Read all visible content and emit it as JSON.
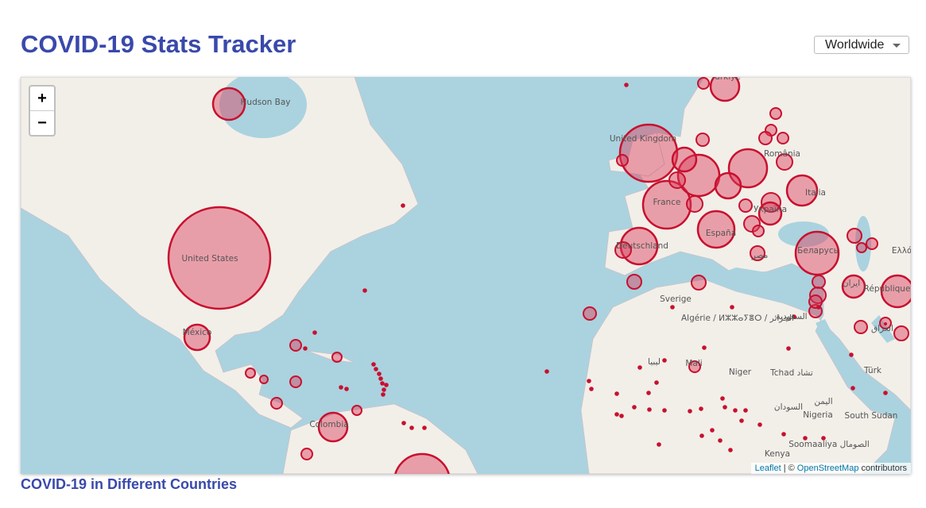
{
  "header": {
    "title": "COVID-19 Stats Tracker",
    "dropdown": "Worldwide"
  },
  "map": {
    "zoom_in": "+",
    "zoom_out": "−",
    "labels": [
      "Hudson Bay",
      "United States",
      "México",
      "Colombia",
      "United Kingdom",
      "France",
      "Deutschland",
      "España",
      "Italia",
      "Україна",
      "România",
      "Беларусь",
      "Türkiye",
      "Sverige",
      "Algérie / ⵍⵣⵣⴰⵢⴻⵔ / الجزائر",
      "ليبيا",
      "Mali",
      "Niger",
      "Tchad تشاد",
      "السودان",
      "Nigeria",
      "South Sudan",
      "Soomaaliya الصومال",
      "Kenya",
      "République dém.",
      "ایران",
      "العراق",
      "السعودية",
      "مصر",
      "Ελλάς",
      "Türk",
      "اليمن",
      "ኢትዮጵያ"
    ],
    "attribution": {
      "leaflet": "Leaflet",
      "separator": "| ©",
      "osm": "OpenStreetMap",
      "suffix": "contributors"
    }
  },
  "section_title": "COVID-19 in Different Countries"
}
